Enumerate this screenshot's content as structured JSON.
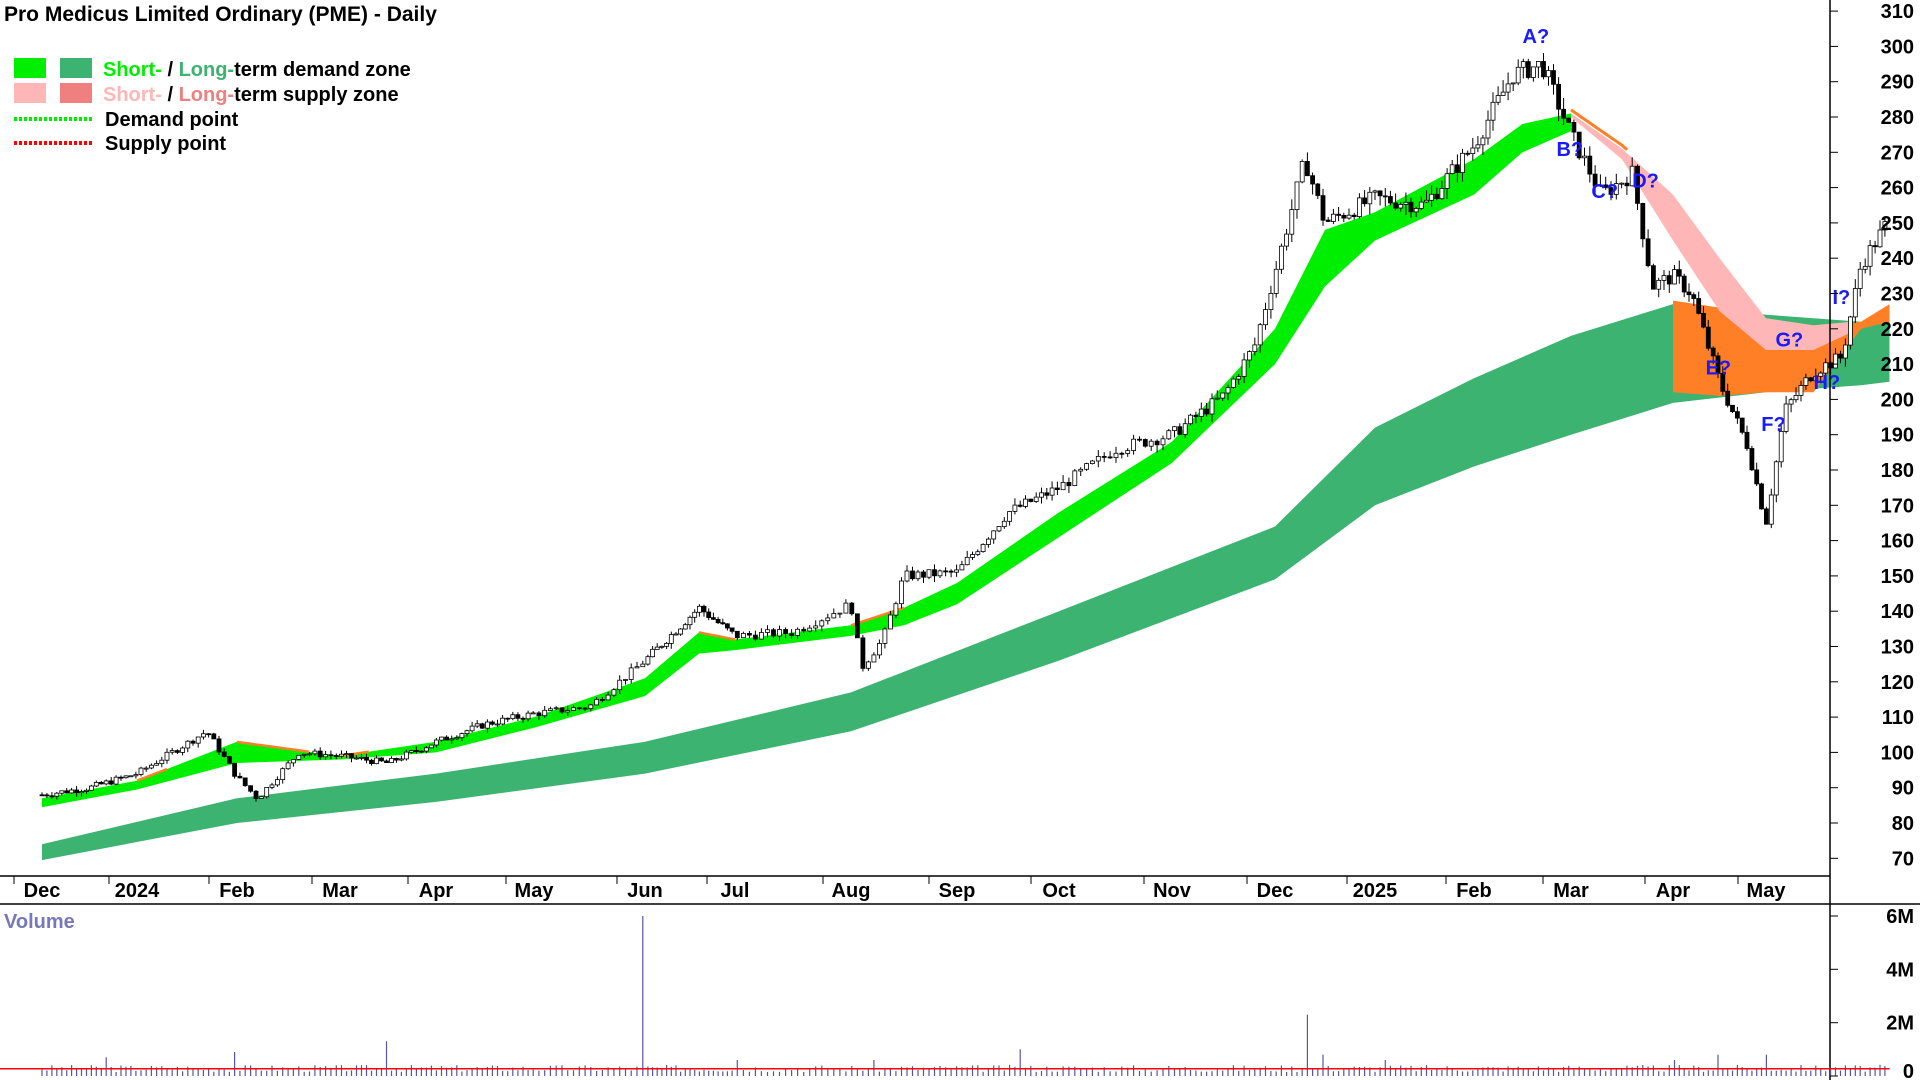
{
  "title": "Pro Medicus Limited Ordinary (PME) - Daily",
  "legend": {
    "row1_short": "Short-",
    "row1_sep": " / ",
    "row1_long": "Long-",
    "row1_rest": "term demand zone",
    "row2_short": "Short-",
    "row2_sep": " / ",
    "row2_long": "Long-",
    "row2_rest": "term supply zone",
    "row3": "Demand point",
    "row4": "Supply point"
  },
  "colors": {
    "short_demand": "#00ee00",
    "long_demand": "#3cb371",
    "short_supply": "#ffb6b6",
    "long_supply": "#f08080",
    "supply_fill": "#ff7f27",
    "demand_point": "#00ee00",
    "supply_point": "#ff0000",
    "annotation": "#1a1aff",
    "volume_bar": "#5555aa",
    "volume_avg": "#ff0000"
  },
  "chart_data": [
    {
      "type": "candlestick",
      "title": "Pro Medicus Limited Ordinary (PME) - Daily",
      "y_axis_side": "right",
      "ylim": [
        65,
        312
      ],
      "y_ticks": [
        70,
        80,
        90,
        100,
        110,
        120,
        130,
        140,
        150,
        160,
        170,
        180,
        190,
        200,
        210,
        220,
        230,
        240,
        250,
        260,
        270,
        280,
        290,
        300,
        310
      ],
      "x_months": [
        "Dec",
        "2024",
        "Feb",
        "Mar",
        "Apr",
        "May",
        "Jun",
        "Jul",
        "Aug",
        "Sep",
        "Oct",
        "Nov",
        "Dec",
        "2025",
        "Feb",
        "Mar",
        "Apr",
        "May"
      ],
      "price_path": [
        {
          "t": 0,
          "v": 88
        },
        {
          "t": 0.5,
          "v": 90
        },
        {
          "t": 1,
          "v": 94
        },
        {
          "t": 1.7,
          "v": 106
        },
        {
          "t": 2.0,
          "v": 93
        },
        {
          "t": 2.2,
          "v": 87
        },
        {
          "t": 2.6,
          "v": 100
        },
        {
          "t": 3,
          "v": 99
        },
        {
          "t": 3.5,
          "v": 97
        },
        {
          "t": 4,
          "v": 103
        },
        {
          "t": 4.5,
          "v": 108
        },
        {
          "t": 5,
          "v": 111
        },
        {
          "t": 5.5,
          "v": 113
        },
        {
          "t": 6,
          "v": 126
        },
        {
          "t": 6.6,
          "v": 141
        },
        {
          "t": 7,
          "v": 133
        },
        {
          "t": 7.5,
          "v": 134
        },
        {
          "t": 8,
          "v": 142
        },
        {
          "t": 8.1,
          "v": 124
        },
        {
          "t": 8.3,
          "v": 132
        },
        {
          "t": 8.5,
          "v": 150
        },
        {
          "t": 9,
          "v": 151
        },
        {
          "t": 9.5,
          "v": 168
        },
        {
          "t": 10,
          "v": 175
        },
        {
          "t": 10.5,
          "v": 186
        },
        {
          "t": 11,
          "v": 190
        },
        {
          "t": 11.5,
          "v": 201
        },
        {
          "t": 11.8,
          "v": 215
        },
        {
          "t": 12,
          "v": 236
        },
        {
          "t": 12.3,
          "v": 268
        },
        {
          "t": 12.5,
          "v": 250
        },
        {
          "t": 13,
          "v": 257
        },
        {
          "t": 13.5,
          "v": 255
        },
        {
          "t": 14,
          "v": 272
        },
        {
          "t": 14.4,
          "v": 292
        },
        {
          "t": 14.7,
          "v": 295
        },
        {
          "t": 15,
          "v": 275
        },
        {
          "t": 15.3,
          "v": 258
        },
        {
          "t": 15.6,
          "v": 264
        },
        {
          "t": 15.8,
          "v": 232
        },
        {
          "t": 16,
          "v": 235
        },
        {
          "t": 16.2,
          "v": 230
        },
        {
          "t": 16.5,
          "v": 205
        },
        {
          "t": 16.8,
          "v": 187
        },
        {
          "t": 17,
          "v": 165
        },
        {
          "t": 17.2,
          "v": 197
        },
        {
          "t": 17.5,
          "v": 208
        },
        {
          "t": 17.8,
          "v": 212
        },
        {
          "t": 18,
          "v": 238
        },
        {
          "t": 18.3,
          "v": 251
        }
      ],
      "short_demand_zone": [
        {
          "t": 0,
          "lo": 84.5,
          "hi": 87
        },
        {
          "t": 1,
          "lo": 89.5,
          "hi": 92
        },
        {
          "t": 2,
          "lo": 97,
          "hi": 103
        },
        {
          "t": 3,
          "lo": 98,
          "hi": 99
        },
        {
          "t": 4,
          "lo": 100,
          "hi": 103
        },
        {
          "t": 5,
          "lo": 107,
          "hi": 110
        },
        {
          "t": 6,
          "lo": 116,
          "hi": 121
        },
        {
          "t": 6.6,
          "lo": 128,
          "hi": 134
        },
        {
          "t": 7,
          "lo": 129,
          "hi": 132
        },
        {
          "t": 8,
          "lo": 133,
          "hi": 136
        },
        {
          "t": 8.5,
          "lo": 136,
          "hi": 141
        },
        {
          "t": 9,
          "lo": 142,
          "hi": 148
        },
        {
          "t": 10,
          "lo": 161,
          "hi": 168
        },
        {
          "t": 11,
          "lo": 182,
          "hi": 188
        },
        {
          "t": 12,
          "lo": 210,
          "hi": 220
        },
        {
          "t": 12.5,
          "lo": 232,
          "hi": 248
        },
        {
          "t": 13,
          "lo": 245,
          "hi": 253
        },
        {
          "t": 14,
          "lo": 258,
          "hi": 268
        },
        {
          "t": 14.5,
          "lo": 270,
          "hi": 278
        },
        {
          "t": 15,
          "lo": 276,
          "hi": 281
        }
      ],
      "long_demand_zone": [
        {
          "t": 0,
          "lo": 69.5,
          "hi": 74
        },
        {
          "t": 2,
          "lo": 80,
          "hi": 87
        },
        {
          "t": 4,
          "lo": 86,
          "hi": 94
        },
        {
          "t": 6,
          "lo": 94,
          "hi": 103
        },
        {
          "t": 8,
          "lo": 106,
          "hi": 117
        },
        {
          "t": 10,
          "lo": 126,
          "hi": 140
        },
        {
          "t": 12,
          "lo": 149,
          "hi": 164
        },
        {
          "t": 13,
          "lo": 170,
          "hi": 192
        },
        {
          "t": 14,
          "lo": 181,
          "hi": 206
        },
        {
          "t": 15,
          "lo": 190,
          "hi": 218
        },
        {
          "t": 16,
          "lo": 199,
          "hi": 227
        },
        {
          "t": 17,
          "lo": 202,
          "hi": 224
        },
        {
          "t": 18,
          "lo": 204,
          "hi": 222
        },
        {
          "t": 18.3,
          "lo": 205,
          "hi": 223
        }
      ],
      "short_supply_zone": [
        {
          "t": 15,
          "lo": 280,
          "hi": 281
        },
        {
          "t": 15.5,
          "lo": 268,
          "hi": 271
        },
        {
          "t": 16,
          "lo": 245,
          "hi": 258
        },
        {
          "t": 16.5,
          "lo": 225,
          "hi": 240
        },
        {
          "t": 17,
          "lo": 214,
          "hi": 223
        },
        {
          "t": 17.5,
          "lo": 214,
          "hi": 221
        },
        {
          "t": 17.9,
          "lo": 219,
          "hi": 222
        }
      ],
      "supply_fill_zone": [
        {
          "t": 16.0,
          "lo": 202,
          "hi": 228
        },
        {
          "t": 16.5,
          "lo": 201,
          "hi": 226
        },
        {
          "t": 17,
          "lo": 202,
          "hi": 222
        },
        {
          "t": 17.5,
          "lo": 202,
          "hi": 220
        },
        {
          "t": 18,
          "lo": 220,
          "hi": 222
        },
        {
          "t": 18.3,
          "lo": 222,
          "hi": 227
        }
      ],
      "annotations": [
        {
          "label": "A?",
          "t": 14.5,
          "v": 301
        },
        {
          "label": "B?",
          "t": 14.85,
          "v": 269
        },
        {
          "label": "C?",
          "t": 15.2,
          "v": 257
        },
        {
          "label": "D?",
          "t": 15.6,
          "v": 260
        },
        {
          "label": "E?",
          "t": 16.35,
          "v": 207
        },
        {
          "label": "F?",
          "t": 16.95,
          "v": 191
        },
        {
          "label": "G?",
          "t": 17.1,
          "v": 215
        },
        {
          "label": "H?",
          "t": 17.5,
          "v": 203
        },
        {
          "label": "I?",
          "t": 17.7,
          "v": 227
        }
      ]
    },
    {
      "type": "bar",
      "title": "Volume",
      "y_axis_side": "right",
      "ylim": [
        0,
        6300000
      ],
      "y_ticks": [
        "0",
        "2M",
        "4M",
        "6M"
      ],
      "y_tick_values": [
        0,
        2000000,
        4000000,
        6000000
      ],
      "spikes": [
        {
          "t": 0.7,
          "v": 700000
        },
        {
          "t": 2.0,
          "v": 900000
        },
        {
          "t": 3.5,
          "v": 1300000
        },
        {
          "t": 6.0,
          "v": 6000000
        },
        {
          "t": 7.0,
          "v": 600000
        },
        {
          "t": 8.2,
          "v": 600000
        },
        {
          "t": 9.6,
          "v": 1000000
        },
        {
          "t": 12.3,
          "v": 2300000
        },
        {
          "t": 12.5,
          "v": 800000
        },
        {
          "t": 13.1,
          "v": 600000
        },
        {
          "t": 16.0,
          "v": 600000
        },
        {
          "t": 16.5,
          "v": 800000
        },
        {
          "t": 17.0,
          "v": 800000
        }
      ],
      "base_level": 300000
    }
  ]
}
